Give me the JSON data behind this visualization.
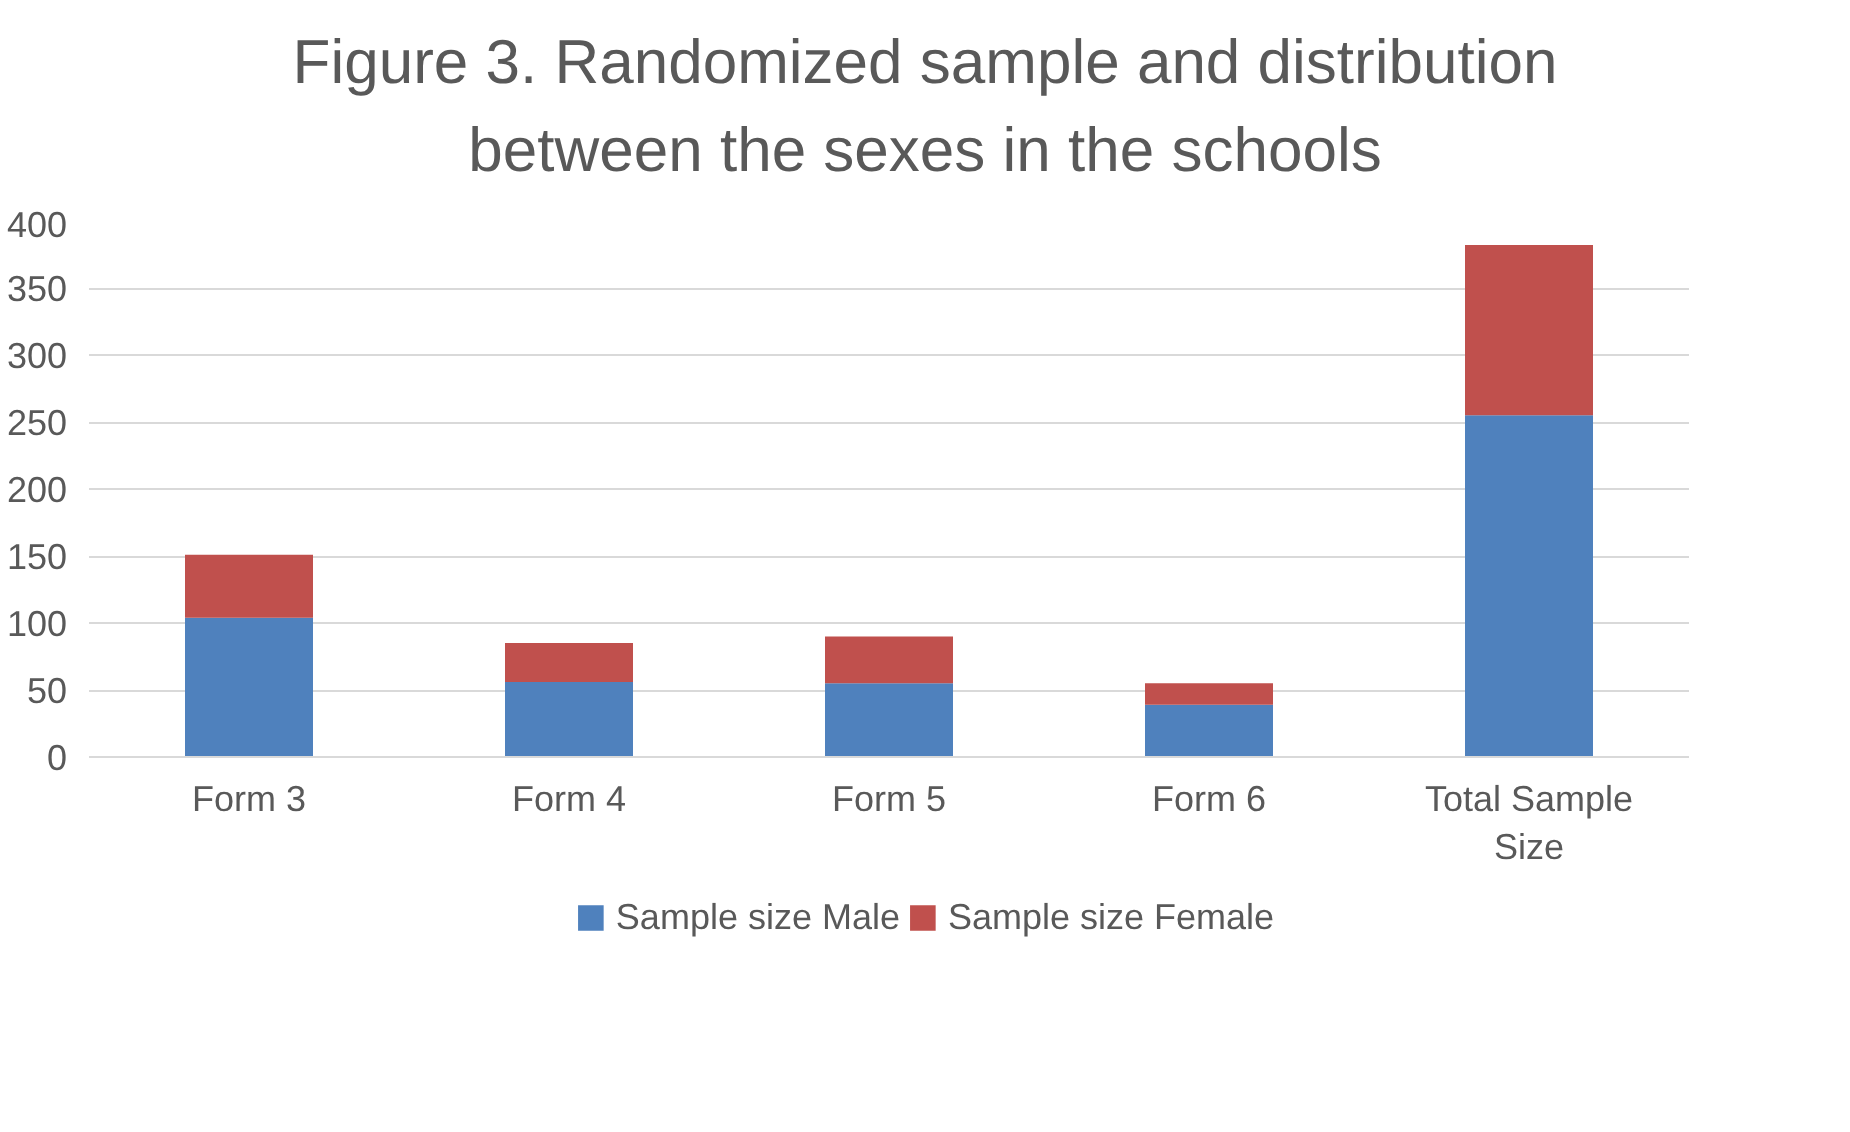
{
  "chart_data": {
    "type": "bar",
    "stacked": true,
    "title": "Figure 3. Randomized sample and distribution between the sexes in the schools",
    "categories": [
      "Form 3",
      "Form 4",
      "Form 5",
      "Form 6",
      "Total Sample Size"
    ],
    "series": [
      {
        "name": "Sample size Male",
        "color": "#4f81bd",
        "values": [
          104,
          56,
          55,
          39,
          255
        ]
      },
      {
        "name": "Sample size Female",
        "color": "#c0504d",
        "values": [
          47,
          29,
          35,
          16,
          127
        ]
      }
    ],
    "ylim": [
      0,
      400
    ],
    "yticks": [
      0,
      50,
      100,
      150,
      200,
      250,
      300,
      350,
      400
    ],
    "grid": "y",
    "legend": "bottom"
  }
}
